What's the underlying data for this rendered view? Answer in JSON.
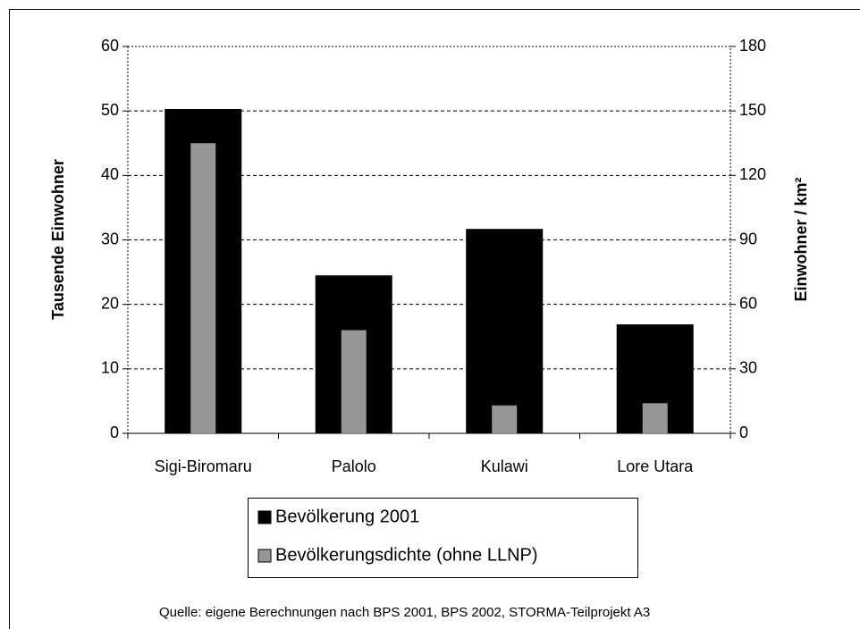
{
  "chart_data": {
    "type": "bar",
    "categories": [
      "Sigi-Biromaru",
      "Palolo",
      "Kulawi",
      "Lore Utara"
    ],
    "series": [
      {
        "name": "Bevölkerung 2001",
        "color": "#000000",
        "values": [
          50.3,
          24.5,
          31.7,
          16.9
        ]
      },
      {
        "name": "Bevölkerungsdichte (ohne LLNP)",
        "color": "#969696",
        "values": [
          135,
          48,
          13,
          14
        ],
        "axis": "y2"
      }
    ],
    "ylabel": "Tausende Einwohner",
    "y2label": "Einwohner / km²",
    "ylim": [
      0,
      60
    ],
    "yticks": [
      0,
      10,
      20,
      30,
      40,
      50,
      60
    ],
    "y2lim": [
      0,
      180
    ],
    "y2ticks": [
      0,
      30,
      60,
      90,
      120,
      150,
      180
    ],
    "grid": true,
    "legend": "bottom",
    "source": "Quelle: eigene Berechnungen nach BPS 2001, BPS  2002, STORMA-Teilprojekt A3"
  }
}
